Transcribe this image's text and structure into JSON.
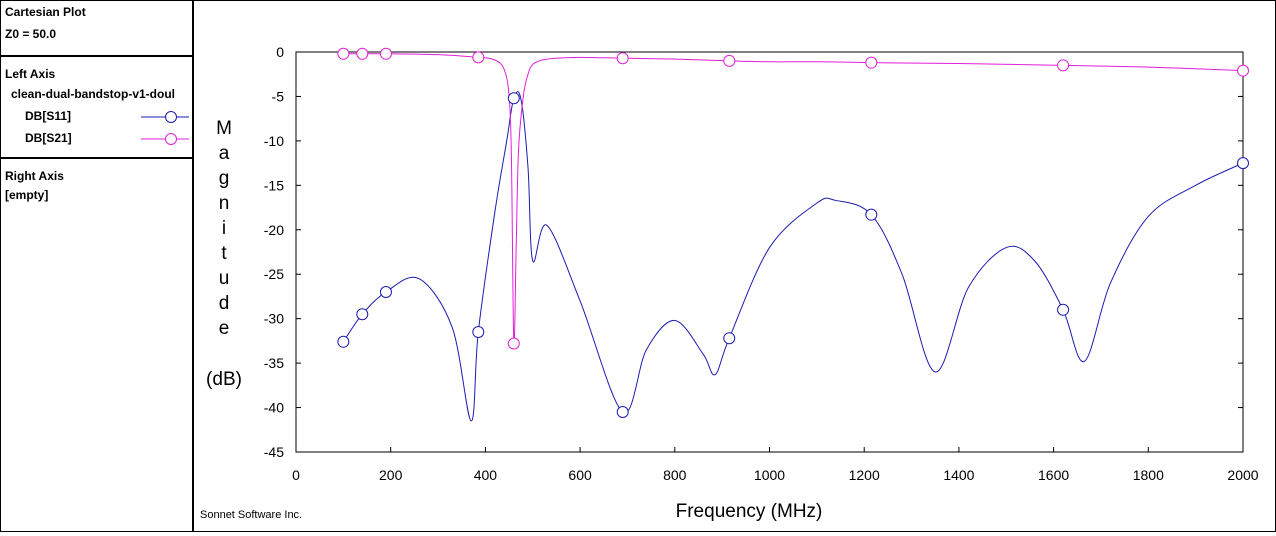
{
  "sidebar": {
    "plot_title": "Cartesian Plot",
    "z0": "Z0 = 50.0",
    "left_axis_title": "Left Axis",
    "left_axis_file": "clean-dual-bandstop-v1-doul",
    "right_axis_title": "Right Axis",
    "right_axis_value": "[empty]"
  },
  "footer": {
    "credit": "Sonnet Software Inc."
  },
  "colors": {
    "s11": "#1c1cb0",
    "s21": "#e020d8"
  },
  "chart_data": {
    "type": "line",
    "xlabel": "Frequency (MHz)",
    "ylabel_letters": [
      "M",
      "a",
      "g",
      "n",
      "i",
      "t",
      "u",
      "d",
      "e"
    ],
    "ylabel_unit": "(dB)",
    "xlim": [
      0,
      2000
    ],
    "ylim": [
      -45,
      0
    ],
    "x_ticks": [
      0,
      200,
      400,
      600,
      800,
      1000,
      1200,
      1400,
      1600,
      1800,
      2000
    ],
    "y_ticks": [
      0,
      -5,
      -10,
      -15,
      -20,
      -25,
      -30,
      -35,
      -40,
      -45
    ],
    "grid": false,
    "series": [
      {
        "name": "DB[S11]",
        "color": "#1c1cb0",
        "x": [
          100,
          140,
          190,
          260,
          330,
          370,
          385,
          420,
          445,
          460,
          475,
          490,
          500,
          530,
          600,
          690,
          740,
          800,
          860,
          885,
          915,
          1000,
          1100,
          1140,
          1215,
          1280,
          1350,
          1420,
          1500,
          1560,
          1620,
          1665,
          1720,
          1800,
          1900,
          2000
        ],
        "y": [
          -32.6,
          -29.5,
          -27.0,
          -25.5,
          -31.0,
          -41.5,
          -31.5,
          -18.0,
          -10.0,
          -5.2,
          -5.3,
          -13.0,
          -23.5,
          -19.5,
          -28.0,
          -40.5,
          -33.5,
          -30.2,
          -34.0,
          -36.3,
          -32.2,
          -22.0,
          -17.0,
          -16.7,
          -18.3,
          -25.0,
          -36.0,
          -26.5,
          -22.0,
          -23.5,
          -29.0,
          -34.8,
          -26.0,
          -18.5,
          -15.0,
          -12.5
        ]
      },
      {
        "name": "DB[S21]",
        "color": "#e020d8",
        "x": [
          100,
          140,
          190,
          300,
          385,
          420,
          440,
          450,
          455,
          460,
          465,
          470,
          480,
          490,
          500,
          520,
          550,
          600,
          690,
          800,
          915,
          1000,
          1100,
          1215,
          1400,
          1620,
          1800,
          2000
        ],
        "y": [
          -0.2,
          -0.2,
          -0.2,
          -0.3,
          -0.6,
          -0.9,
          -2.0,
          -5.0,
          -12.0,
          -32.8,
          -22.0,
          -11.0,
          -5.0,
          -2.5,
          -1.4,
          -0.9,
          -0.7,
          -0.6,
          -0.7,
          -0.8,
          -1.0,
          -1.1,
          -1.1,
          -1.2,
          -1.3,
          -1.5,
          -1.7,
          -2.1
        ]
      }
    ],
    "markers": [
      {
        "series": 0,
        "x": [
          100,
          140,
          190,
          385,
          460,
          690,
          915,
          1215,
          1620,
          2000
        ],
        "y": [
          -32.6,
          -29.5,
          -27.0,
          -31.5,
          -5.2,
          -40.5,
          -32.2,
          -18.3,
          -29.0,
          -12.5
        ]
      },
      {
        "series": 1,
        "x": [
          100,
          140,
          190,
          385,
          460,
          690,
          915,
          1215,
          1620,
          2000
        ],
        "y": [
          -0.2,
          -0.2,
          -0.2,
          -0.6,
          -32.8,
          -0.7,
          -1.0,
          -1.2,
          -1.5,
          -2.1
        ]
      }
    ]
  }
}
